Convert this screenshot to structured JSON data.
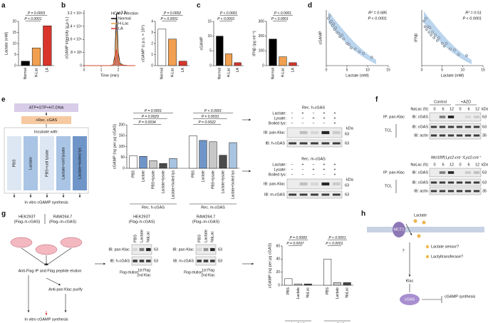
{
  "a": {
    "label": "a",
    "chart": {
      "type": "bar",
      "ylabel": "Lactate (mM)",
      "categories": [
        "Normal",
        "H-Lac",
        "LA"
      ],
      "colors": [
        "#000000",
        "#f0a050",
        "#d9352b"
      ],
      "values": [
        2,
        8,
        18
      ],
      "ylim": [
        0,
        20
      ],
      "yticks": [
        0,
        5,
        10,
        15,
        20
      ],
      "pvalues": [
        "P = 0.0003",
        "P < 0.0001"
      ]
    }
  },
  "b": {
    "label": "b",
    "line": {
      "type": "line",
      "ylabel": "cGAMP intensity (c.p.s.)",
      "xlabel": "Time (min)",
      "legend_title": "HCMV infection",
      "annotation": "1.9",
      "x": [
        0,
        0.5,
        1,
        1.5,
        1.7,
        1.8,
        1.85,
        1.9,
        1.95,
        2,
        2.1,
        2.3,
        2.6,
        3
      ],
      "series": [
        {
          "name": "Normal",
          "color": "#000000",
          "values": [
            0,
            0,
            0,
            0,
            500,
            6000,
            20000,
            32000,
            22000,
            8000,
            1500,
            300,
            0,
            0
          ]
        },
        {
          "name": "H-Lac",
          "color": "#f0a050",
          "values": [
            0,
            0,
            0,
            0,
            400,
            4000,
            13000,
            21000,
            14000,
            5000,
            1000,
            200,
            0,
            0
          ]
        },
        {
          "name": "LA",
          "color": "#d9352b",
          "values": [
            0,
            0,
            0,
            0,
            200,
            2000,
            6000,
            10000,
            7000,
            2500,
            500,
            100,
            0,
            0
          ]
        }
      ],
      "xlim": [
        0,
        3
      ],
      "xticks": [
        0,
        1,
        2
      ],
      "ylim": [
        0,
        34000
      ],
      "yticks": [
        0,
        {
          "value": 8000,
          "label": "8 × 10³"
        },
        {
          "value": 16000,
          "label": "1.6 × 10⁴"
        },
        {
          "value": 24000,
          "label": "2.4 × 10⁴"
        },
        {
          "value": 32000,
          "label": "3.2 × 10⁴"
        }
      ]
    },
    "bar": {
      "type": "bar",
      "ylabel": "cGAMP (c.p.s. × 10⁴)",
      "categories": [
        "Normal",
        "H-Lac",
        "LA"
      ],
      "colors": [
        "#ffffff",
        "#f0a050",
        "#d9352b"
      ],
      "values": [
        3.3,
        2.4,
        0.4
      ],
      "ylim": [
        0,
        4
      ],
      "yticks": [
        0,
        1,
        2,
        3,
        4
      ],
      "pvalues": [
        "P = 0.0002",
        "P < 0.0001"
      ]
    }
  },
  "c": {
    "label": "c",
    "cgamp": {
      "type": "bar",
      "ylabel": "cGAMP",
      "categories": [
        "Normal",
        "H-Lac",
        "LA"
      ],
      "colors": [
        "#000000",
        "#f0a050",
        "#d9352b"
      ],
      "values": [
        10,
        4,
        1
      ],
      "ylim": [
        0,
        15
      ],
      "yticks": [
        0,
        5,
        10,
        15
      ],
      "pvalues": [
        "P < 0.0001",
        "P < 0.0001"
      ]
    },
    "ifn": {
      "type": "bar",
      "ylabel": "IFNβ (pg ml⁻¹)",
      "categories": [
        "Normal",
        "H-Lac",
        "LA"
      ],
      "colors": [
        "#000000",
        "#f0a050",
        "#d9352b"
      ],
      "values": [
        180,
        60,
        20
      ],
      "ylim": [
        0,
        300
      ],
      "yticks": [
        0,
        100,
        200,
        300
      ],
      "pvalues": [
        "P < 0.0001",
        "P < 0.0001"
      ]
    }
  },
  "d": {
    "label": "d",
    "plots": [
      {
        "type": "scatter",
        "ylabel": "cGAMP",
        "xlabel": "Lactate (mM)",
        "annotation": [
          "R² = 0.685",
          "P < 0.0001"
        ],
        "x": [
          0.5,
          0.8,
          1,
          1.2,
          1.5,
          1.8,
          2,
          2.3,
          2.6,
          3,
          3.3,
          3.8,
          4.2,
          5,
          5.5,
          6,
          7,
          8,
          9,
          11
        ],
        "y": [
          8.5,
          9,
          7.8,
          8,
          7.2,
          7.5,
          6.5,
          6.8,
          6,
          5.8,
          5.2,
          5.5,
          4.8,
          4,
          3.8,
          3.2,
          3,
          2.5,
          2.2,
          1.5
        ],
        "xlim": [
          0,
          15
        ],
        "xticks": [
          0,
          5,
          10,
          15
        ],
        "ylim": [
          0,
          10
        ]
      },
      {
        "type": "scatter",
        "ylabel": "IFNβ",
        "xlabel": "Lactate (mM)",
        "annotation": [
          "R² = 0.51",
          "P < 0.0001"
        ],
        "x": [
          0.5,
          0.8,
          1,
          1.2,
          1.5,
          1.8,
          2,
          2.3,
          2.6,
          3,
          3.3,
          3.8,
          4.2,
          5,
          5.5,
          6,
          7,
          8,
          9,
          11
        ],
        "y": [
          8,
          7,
          8.5,
          6.5,
          7,
          6,
          6.8,
          5.5,
          6,
          5,
          5.5,
          4.5,
          5,
          4,
          3.5,
          4,
          3,
          2.8,
          2,
          1.8
        ],
        "xlim": [
          0,
          15
        ],
        "xticks": [
          0,
          5,
          10,
          15
        ],
        "ylim": [
          0,
          10
        ]
      }
    ]
  },
  "e": {
    "label": "e",
    "flow": {
      "reaction": "ATP+GTP+HT-DNA",
      "enzyme": "+Rec. cGAS",
      "incubate": "Incubate with:",
      "columns": [
        "PBS",
        "Lactate",
        "PBS+cell lysate",
        "Lactate+cell lysate",
        "Lactate+boiled lys"
      ],
      "output": "In vitro cGAMP synthesis"
    },
    "chart": {
      "type": "bar",
      "ylabel": "cGAMP (ng per μg cGAS)",
      "categories": [
        "PBS",
        "Lactate",
        "PBS+lysate",
        "Lactate+lysate",
        "Lactate+boiled lys"
      ],
      "colors": [
        "#ffffff",
        "#6f95c8",
        "#c8c8c8",
        "#4b4b4b",
        "#a8c4e0"
      ],
      "groups": [
        {
          "name": "Rec. h-cGAS",
          "values": [
            58,
            55,
            35,
            22,
            45
          ]
        },
        {
          "name": "Rec. m-cGAS",
          "values": [
            150,
            128,
            122,
            60,
            118
          ]
        }
      ],
      "ylim": [
        0,
        200
      ],
      "yticks": [
        0,
        50,
        100,
        150,
        200
      ],
      "pvalues": [
        "P = 0.0001",
        "P = 0.0029",
        "P = 0.0034",
        "P < 0.0001",
        "P = 0.0033",
        "P = 0.0022"
      ]
    },
    "blots": [
      {
        "title": "Rec. h-cGAS",
        "rows": [
          {
            "name": "Lactate:",
            "marks": [
              "−",
              "+",
              "−",
              "+",
              "+"
            ]
          },
          {
            "name": "Lysate:",
            "marks": [
              "−",
              "−",
              "+",
              "+",
              "+"
            ]
          },
          {
            "name": "Boiled lys:",
            "marks": [
              "−",
              "−",
              "−",
              "−",
              "+"
            ]
          }
        ],
        "ib1": "IB: pan-Klac",
        "ib2": "IB: h-cGAS"
      },
      {
        "title": "Rec. m-cGAS",
        "rows": [
          {
            "name": "Lactate:",
            "marks": [
              "−",
              "+",
              "−",
              "+",
              "+"
            ]
          },
          {
            "name": "Lysate:",
            "marks": [
              "−",
              "−",
              "+",
              "+",
              "+"
            ]
          },
          {
            "name": "Boiled lys:",
            "marks": [
              "−",
              "−",
              "−",
              "−",
              "+"
            ]
          }
        ],
        "ib1": "IB: pan-Klac",
        "ib2": "IB: m-cGAS"
      }
    ],
    "kda": "kDa",
    "mw": "63"
  },
  "f": {
    "label": "f",
    "headers": [
      "Control",
      "+AZD"
    ],
    "genotype": "Mct1fl/fl;Lyz2-cre⁻/Lyz2-cre⁺",
    "nalac": "NaLac (h):",
    "lanes": [
      "0",
      "6",
      "12",
      "0",
      "6",
      "12"
    ],
    "kda": "kDa",
    "ip": "IP: pan-Klac",
    "ib_cgas": "IB: cGAS",
    "tcl": "TCL",
    "ib_actin": "IB: actin",
    "mw": [
      "63",
      "63",
      "35"
    ]
  },
  "g": {
    "label": "g",
    "cell_lines": [
      "HEK293T",
      "RAW264.7"
    ],
    "constructs": [
      "(Flag–h-cGAS)",
      "(Flag–m-cGAS)"
    ],
    "step1": "Anti-Flag IP and Flag peptide elution",
    "step2": "Anti-pan Klac purify",
    "output": "In vitro cGAMP synthesis",
    "lanes": [
      "PBS",
      "Lactate",
      "NaLac"
    ],
    "ib_klac": "IB: pan Klac",
    "ib_cgas": [
      "IB: h-cGAS",
      "IB: m-cGAS"
    ],
    "mw": "63",
    "elution": [
      "Flag elution",
      "1st Flag",
      "2nd Klac"
    ],
    "chart": {
      "type": "bar",
      "ylabel": "cGAMP (ng per μg cGAS)",
      "categories": [
        "PBS",
        "Lactate",
        "NaLac"
      ],
      "colors": [
        "#ffffff",
        "#d0d0d0",
        "#4b4b4b"
      ],
      "groups": [
        {
          "name": "h-cGAS",
          "values": [
            10,
            2,
            2
          ]
        },
        {
          "name": "m-cGAS",
          "values": [
            40,
            4,
            4
          ]
        }
      ],
      "ylim": [
        0,
        60
      ],
      "yticks": [
        0,
        20,
        40,
        60
      ],
      "pvalues": [
        "P = 0.0083",
        "P = 0.0097",
        "P < 0.0001",
        "P < 0.0001"
      ]
    }
  },
  "h": {
    "label": "h",
    "lactate": "Lactate",
    "transporter": "MCT1",
    "q": "?",
    "sensor": "Lactate sensor?",
    "transferase": "Lactyltransferase?",
    "klac": "Klac",
    "cgas": "cGAS",
    "output": "cGAMP synthesis"
  }
}
